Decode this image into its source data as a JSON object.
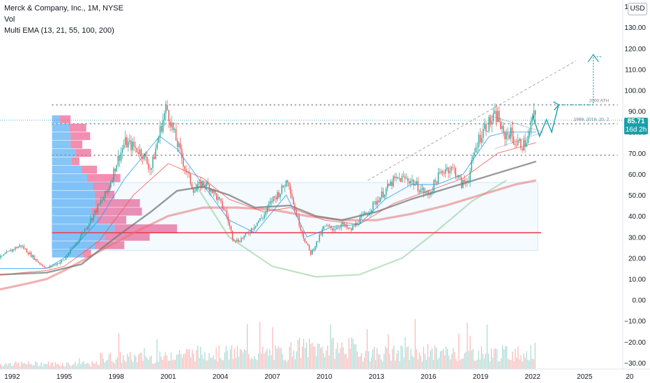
{
  "header": {
    "title": "Merck & Company, Inc., 1M, NYSE",
    "volume_label": "Vol",
    "ema_label": "Multi EMA (13, 21, 55, 100, 200)",
    "currency": "USD"
  },
  "price_tag": {
    "price": "85.71",
    "countdown": "16d 2h"
  },
  "chart_data": {
    "type": "candlestick",
    "x_ticks": [
      "1992",
      "1995",
      "1998",
      "2001",
      "2004",
      "2007",
      "2010",
      "2013",
      "2016",
      "2019",
      "2022",
      "2025",
      "20"
    ],
    "y_ticks": [
      "140.00",
      "130.00",
      "120.00",
      "110.00",
      "100.00",
      "90.00",
      "80.00",
      "70.00",
      "60.00",
      "50.00",
      "40.00",
      "30.00",
      "20.00",
      "10.00",
      "0.00",
      "−10.00",
      "−20.00",
      "−30.00"
    ],
    "ylim": [
      -33,
      143
    ],
    "xlim": [
      1991.3,
      2027.2
    ],
    "annotations": [
      "2000 ATH",
      "1999, 2019, 20, 2"
    ],
    "price_path": [
      [
        1991.3,
        20
      ],
      [
        1992,
        24
      ],
      [
        1992.5,
        26
      ],
      [
        1993,
        22
      ],
      [
        1993.5,
        18
      ],
      [
        1994,
        15
      ],
      [
        1994.5,
        17
      ],
      [
        1995,
        19
      ],
      [
        1995.5,
        25
      ],
      [
        1996,
        31
      ],
      [
        1996.5,
        38
      ],
      [
        1997,
        45
      ],
      [
        1997.5,
        52
      ],
      [
        1998,
        65
      ],
      [
        1998.5,
        75
      ],
      [
        1999,
        73
      ],
      [
        1999.5,
        70
      ],
      [
        2000,
        62
      ],
      [
        2000.5,
        80
      ],
      [
        2000.9,
        92
      ],
      [
        2001.3,
        80
      ],
      [
        2001.7,
        70
      ],
      [
        2002,
        62
      ],
      [
        2002.5,
        52
      ],
      [
        2003,
        56
      ],
      [
        2003.5,
        53
      ],
      [
        2004,
        46
      ],
      [
        2004.3,
        42
      ],
      [
        2004.7,
        30
      ],
      [
        2005,
        28
      ],
      [
        2005.5,
        31
      ],
      [
        2006,
        36
      ],
      [
        2006.5,
        40
      ],
      [
        2007,
        48
      ],
      [
        2007.5,
        52
      ],
      [
        2007.9,
        58
      ],
      [
        2008.3,
        43
      ],
      [
        2008.8,
        30
      ],
      [
        2009.2,
        22
      ],
      [
        2009.6,
        28
      ],
      [
        2010,
        35
      ],
      [
        2010.5,
        34
      ],
      [
        2011,
        36
      ],
      [
        2011.5,
        33
      ],
      [
        2012,
        38
      ],
      [
        2012.5,
        42
      ],
      [
        2013,
        47
      ],
      [
        2013.5,
        52
      ],
      [
        2014,
        57
      ],
      [
        2014.5,
        58
      ],
      [
        2015,
        57
      ],
      [
        2015.5,
        53
      ],
      [
        2016,
        50
      ],
      [
        2016.5,
        58
      ],
      [
        2017,
        63
      ],
      [
        2017.5,
        62
      ],
      [
        2017.9,
        55
      ],
      [
        2018.3,
        58
      ],
      [
        2018.8,
        75
      ],
      [
        2019.2,
        82
      ],
      [
        2019.7,
        86
      ],
      [
        2020,
        88
      ],
      [
        2020.3,
        78
      ],
      [
        2020.7,
        80
      ],
      [
        2021,
        75
      ],
      [
        2021.5,
        74
      ],
      [
        2021.8,
        78
      ],
      [
        2022,
        88
      ],
      [
        2022.2,
        85.71
      ]
    ],
    "ema_fast": [
      [
        1991.3,
        15
      ],
      [
        1994,
        15
      ],
      [
        1995,
        20
      ],
      [
        1997,
        38
      ],
      [
        1998.5,
        58
      ],
      [
        2000.5,
        78
      ],
      [
        2001.5,
        72
      ],
      [
        2003,
        55
      ],
      [
        2004.5,
        38
      ],
      [
        2006,
        32
      ],
      [
        2007.8,
        50
      ],
      [
        2009,
        30
      ],
      [
        2010.5,
        35
      ],
      [
        2012,
        36
      ],
      [
        2013.5,
        48
      ],
      [
        2015,
        55
      ],
      [
        2016.5,
        55
      ],
      [
        2018,
        60
      ],
      [
        2019.5,
        78
      ],
      [
        2020.5,
        80
      ],
      [
        2022.2,
        80
      ]
    ],
    "ema_slow": [
      [
        1991.3,
        12
      ],
      [
        1994,
        14
      ],
      [
        1995,
        16
      ],
      [
        1997,
        28
      ],
      [
        1999,
        50
      ],
      [
        2001,
        65
      ],
      [
        2003,
        58
      ],
      [
        2004.5,
        48
      ],
      [
        2006.5,
        42
      ],
      [
        2008,
        44
      ],
      [
        2010,
        38
      ],
      [
        2012,
        36
      ],
      [
        2014,
        46
      ],
      [
        2016,
        52
      ],
      [
        2018,
        58
      ],
      [
        2020,
        70
      ],
      [
        2022.2,
        75
      ]
    ],
    "ema_55": [
      [
        1991.3,
        12
      ],
      [
        1994,
        13
      ],
      [
        1996,
        17
      ],
      [
        1998,
        30
      ],
      [
        2000,
        42
      ],
      [
        2001.5,
        52
      ],
      [
        2003,
        54
      ],
      [
        2004.5,
        50
      ],
      [
        2006,
        44
      ],
      [
        2008,
        45
      ],
      [
        2009.5,
        40
      ],
      [
        2011,
        38
      ],
      [
        2013,
        42
      ],
      [
        2015,
        48
      ],
      [
        2017,
        53
      ],
      [
        2019,
        58
      ],
      [
        2021,
        63
      ],
      [
        2022.2,
        66
      ]
    ],
    "ema_200": [
      [
        1991.3,
        5
      ],
      [
        1993,
        8
      ],
      [
        1994,
        10
      ],
      [
        1995,
        14
      ],
      [
        1997,
        23
      ],
      [
        1999,
        32
      ],
      [
        2001,
        40
      ],
      [
        2003,
        44
      ],
      [
        2005,
        44
      ],
      [
        2007,
        43
      ],
      [
        2009,
        40
      ],
      [
        2011,
        38
      ],
      [
        2013,
        38
      ],
      [
        2015,
        41
      ],
      [
        2017,
        45
      ],
      [
        2019,
        50
      ],
      [
        2021,
        55
      ],
      [
        2022.2,
        57
      ]
    ],
    "levels": [
      {
        "label": "2000 ATH",
        "y": 93,
        "x0": 1994.3,
        "x1": 2026.9,
        "color": "#8d8f99"
      },
      {
        "label": "1999, 2019, 20, 2",
        "y": 84,
        "x0": 1994.3,
        "x1": 2026.9,
        "color": "#8d8f99"
      },
      {
        "label": "",
        "y": 69,
        "x0": 1994.3,
        "x1": 2026.9,
        "color": "#8d8f99"
      }
    ],
    "support_line": {
      "y": 32,
      "x0": 1994.3,
      "x1": 2022.5,
      "color": "#f23645"
    },
    "volume_profile": [
      {
        "y": 86,
        "up": 0.4,
        "down": 0.55
      },
      {
        "y": 82,
        "up": 0.9,
        "down": 0.85
      },
      {
        "y": 78,
        "up": 0.95,
        "down": 1.0
      },
      {
        "y": 74,
        "up": 0.95,
        "down": 0.6
      },
      {
        "y": 70,
        "up": 1.2,
        "down": 0.8
      },
      {
        "y": 66,
        "up": 1.0,
        "down": 0.4
      },
      {
        "y": 62,
        "up": 1.5,
        "down": 0.8
      },
      {
        "y": 58,
        "up": 1.8,
        "down": 1.7
      },
      {
        "y": 54,
        "up": 2.1,
        "down": 0.9
      },
      {
        "y": 50,
        "up": 2.2,
        "down": 1.0
      },
      {
        "y": 46,
        "up": 2.2,
        "down": 2.3
      },
      {
        "y": 42,
        "up": 2.0,
        "down": 2.6
      },
      {
        "y": 38,
        "up": 2.3,
        "down": 1.5
      },
      {
        "y": 34,
        "up": 3.2,
        "down": 3.2
      },
      {
        "y": 30,
        "up": 2.7,
        "down": 2.3
      },
      {
        "y": 26,
        "up": 2.2,
        "down": 1.5
      },
      {
        "y": 22,
        "up": 1.6,
        "down": 0.4
      }
    ],
    "cup": [
      [
        2002.5,
        56
      ],
      [
        2004.5,
        30
      ],
      [
        2007,
        16
      ],
      [
        2009.5,
        11
      ],
      [
        2012,
        12
      ],
      [
        2014.5,
        20
      ],
      [
        2016.5,
        33
      ],
      [
        2018.5,
        47
      ],
      [
        2020.5,
        57
      ]
    ],
    "channel_upper": [
      [
        2012.5,
        57
      ],
      [
        2024.5,
        114
      ]
    ],
    "projection": [
      [
        2022,
        88
      ],
      [
        2022.4,
        78
      ],
      [
        2022.8,
        86
      ],
      [
        2023.1,
        80
      ],
      [
        2023.5,
        93
      ],
      [
        2025.5,
        93
      ],
      [
        2025.5,
        116
      ],
      [
        2026,
        116
      ]
    ],
    "volume_bars": 380
  }
}
